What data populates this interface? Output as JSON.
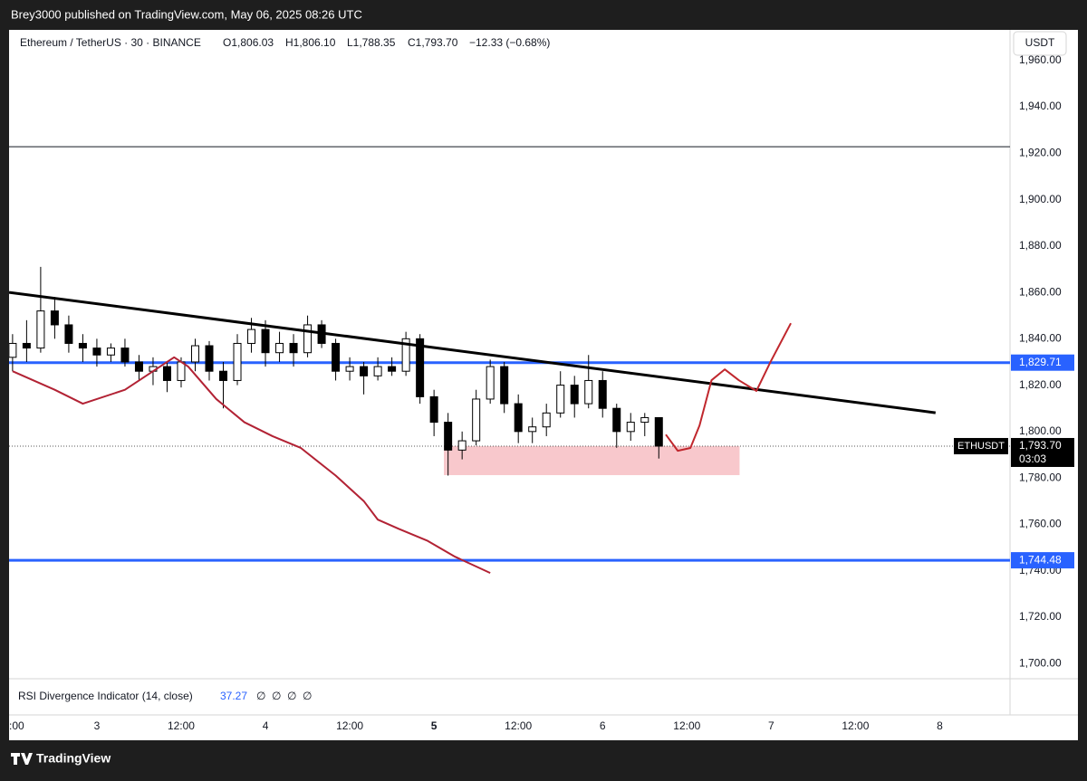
{
  "header": {
    "title": "Brey3000 published on TradingView.com, May 06, 2025 08:26 UTC"
  },
  "chart_data": {
    "type": "candlestick",
    "legend": {
      "symbol": "Ethereum / TetherUS · 30 · BINANCE",
      "open": "O1,806.03",
      "high": "H1,806.10",
      "low": "L1,788.35",
      "close": "C1,793.70",
      "change": "−12.33 (−0.68%)"
    },
    "currency": "USDT",
    "x": [
      -12,
      -10,
      -8,
      -6,
      -4,
      -2,
      0,
      2,
      4,
      6,
      8,
      10,
      12,
      14,
      16,
      18,
      20,
      22,
      24,
      26,
      28,
      30,
      32,
      34,
      36,
      38,
      40,
      42,
      44,
      46,
      48,
      50,
      52,
      54,
      56,
      58,
      60,
      62,
      64,
      66,
      68,
      70,
      72,
      74,
      76,
      78,
      80
    ],
    "open": [
      1832,
      1838,
      1836,
      1852,
      1846,
      1838,
      1836,
      1833,
      1836,
      1830,
      1826,
      1828,
      1822,
      1830,
      1837,
      1826,
      1822,
      1838,
      1844,
      1834,
      1838,
      1834,
      1846,
      1838,
      1826,
      1828,
      1824,
      1828,
      1826,
      1840,
      1815,
      1804,
      1792,
      1796,
      1814,
      1828,
      1812,
      1800,
      1802,
      1808,
      1820,
      1812,
      1822,
      1810,
      1800,
      1804,
      1806
    ],
    "high": [
      1842,
      1848,
      1871,
      1858,
      1850,
      1842,
      1840,
      1838,
      1840,
      1833,
      1832,
      1830,
      1832,
      1840,
      1839,
      1830,
      1842,
      1849,
      1848,
      1843,
      1842,
      1850,
      1848,
      1840,
      1832,
      1830,
      1832,
      1832,
      1843,
      1842,
      1818,
      1808,
      1800,
      1818,
      1831,
      1830,
      1816,
      1806,
      1812,
      1826,
      1824,
      1833,
      1826,
      1812,
      1808,
      1808,
      1806.1
    ],
    "low": [
      1826,
      1830,
      1834,
      1840,
      1834,
      1830,
      1828,
      1830,
      1828,
      1822,
      1820,
      1817,
      1819,
      1826,
      1822,
      1810,
      1820,
      1834,
      1828,
      1830,
      1828,
      1832,
      1836,
      1822,
      1822,
      1816,
      1822,
      1824,
      1824,
      1812,
      1798,
      1781,
      1788,
      1794,
      1812,
      1808,
      1795,
      1795,
      1798,
      1806,
      1806,
      1810,
      1806,
      1793,
      1796,
      1798,
      1788.35
    ],
    "close": [
      1838,
      1836,
      1852,
      1846,
      1838,
      1836,
      1833,
      1836,
      1830,
      1826,
      1828,
      1822,
      1830,
      1837,
      1826,
      1822,
      1838,
      1844,
      1834,
      1838,
      1834,
      1846,
      1838,
      1826,
      1828,
      1824,
      1828,
      1826,
      1840,
      1815,
      1804,
      1792,
      1796,
      1814,
      1828,
      1812,
      1800,
      1802,
      1808,
      1820,
      1812,
      1822,
      1810,
      1800,
      1804,
      1806,
      1793.7
    ],
    "ma": {
      "color": "#b22234",
      "x": [
        -12,
        -6,
        -2,
        4,
        11,
        13,
        17,
        21,
        25,
        29,
        34,
        38,
        40,
        43,
        47,
        51,
        56
      ],
      "values": [
        1826,
        1818,
        1812,
        1818,
        1832,
        1828,
        1814,
        1804,
        1798,
        1793,
        1781,
        1770,
        1762,
        1758,
        1753,
        1746,
        1739
      ]
    },
    "trendline": {
      "color": "#000000",
      "x": [
        -12.5,
        119.4
      ],
      "values": [
        1860,
        1808.1
      ]
    },
    "levels": [
      {
        "value": 1829.71,
        "label": "1,829.71"
      },
      {
        "value": 1744.48,
        "label": "1,744.48"
      }
    ],
    "level_color": "#2962ff",
    "top_line": {
      "value": 1922.8,
      "color": "#131722"
    },
    "zone": {
      "x": [
        49.4,
        91.5
      ],
      "values": [
        1781.2,
        1793.7
      ],
      "color": "#f8c8cc"
    },
    "projection": {
      "color": "#c0272d",
      "x": [
        81,
        82.7,
        84.5,
        85.8,
        87.5,
        89.4,
        91.4,
        93.9,
        95.9,
        98.8
      ],
      "values": [
        1798.7,
        1791.7,
        1792.9,
        1802.6,
        1822.1,
        1826.8,
        1822.1,
        1817.5,
        1830,
        1846.7
      ]
    },
    "last_price": {
      "value": 1793.7,
      "label": "1,793.70"
    },
    "symbol_tag": "ETHUSDT",
    "countdown": "03:03",
    "indicator": {
      "name": "RSI Divergence Indicator (14, close)",
      "value": "37.27",
      "extras": [
        "∅",
        "∅",
        "∅",
        "∅"
      ]
    },
    "xlim": [
      -12.5,
      130
    ],
    "ylim": [
      1693.4,
      1973.2
    ],
    "xticks": [
      {
        "value": -12,
        "label": ":00"
      },
      3,
      {
        "value": 12,
        "label": "12:00"
      },
      4,
      {
        "value": 36,
        "label": "12:00"
      },
      5,
      {
        "value": 60,
        "label": "12:00"
      },
      6,
      {
        "value": 84,
        "label": "12:00"
      },
      7,
      {
        "value": 108,
        "label": "12:00"
      },
      8
    ],
    "xtick_positions": [
      -12,
      0,
      12,
      24,
      36,
      48,
      60,
      72,
      84,
      96,
      108,
      120
    ],
    "yticks": [
      {
        "value": 1700,
        "label": "1,700.00"
      },
      {
        "value": 1720,
        "label": "1,720.00"
      },
      {
        "value": 1740,
        "label": "1,740.00"
      },
      {
        "value": 1760,
        "label": "1,760.00"
      },
      {
        "value": 1780,
        "label": "1,780.00"
      },
      {
        "value": 1800,
        "label": "1,800.00"
      },
      {
        "value": 1820,
        "label": "1,820.00"
      },
      {
        "value": 1840,
        "label": "1,840.00"
      },
      {
        "value": 1860,
        "label": "1,860.00"
      },
      {
        "value": 1880,
        "label": "1,880.00"
      },
      {
        "value": 1900,
        "label": "1,900.00"
      },
      {
        "value": 1920,
        "label": "1,920.00"
      },
      {
        "value": 1940,
        "label": "1,940.00"
      },
      {
        "value": 1960,
        "label": "1,960.00"
      }
    ]
  },
  "footer": {
    "brand": "TradingView"
  }
}
